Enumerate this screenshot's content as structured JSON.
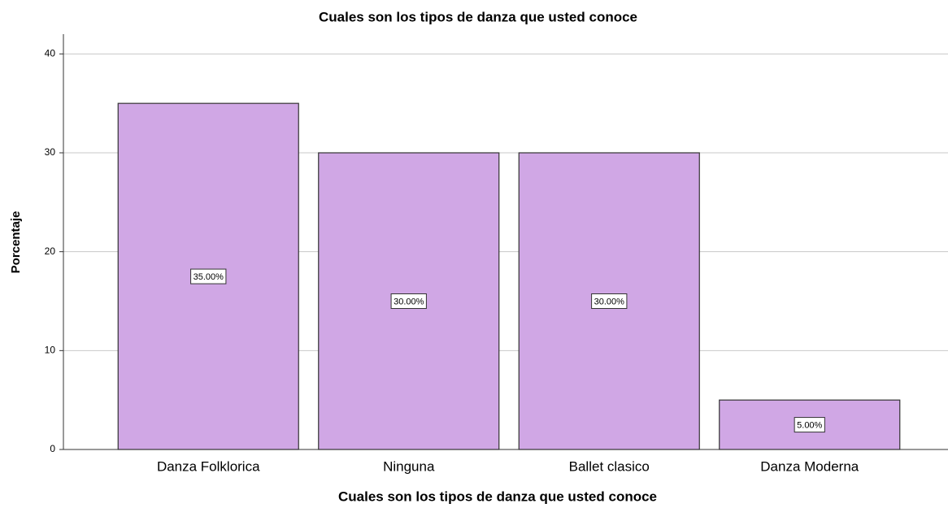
{
  "chart_data": {
    "type": "bar",
    "title": "Cuales son los tipos de danza que usted conoce",
    "xlabel": "Cuales son los tipos de danza que usted conoce",
    "ylabel": "Porcentaje",
    "categories": [
      "Danza Folklorica",
      "Ninguna",
      "Ballet clasico",
      "Danza Moderna"
    ],
    "values": [
      35,
      30,
      30,
      5
    ],
    "value_labels": [
      "35.00%",
      "30.00%",
      "30.00%",
      "5.00%"
    ],
    "color": "#d0a7e5",
    "ylim": [
      0,
      42
    ],
    "yticks": [
      0,
      10,
      20,
      30,
      40
    ],
    "grid": true
  }
}
